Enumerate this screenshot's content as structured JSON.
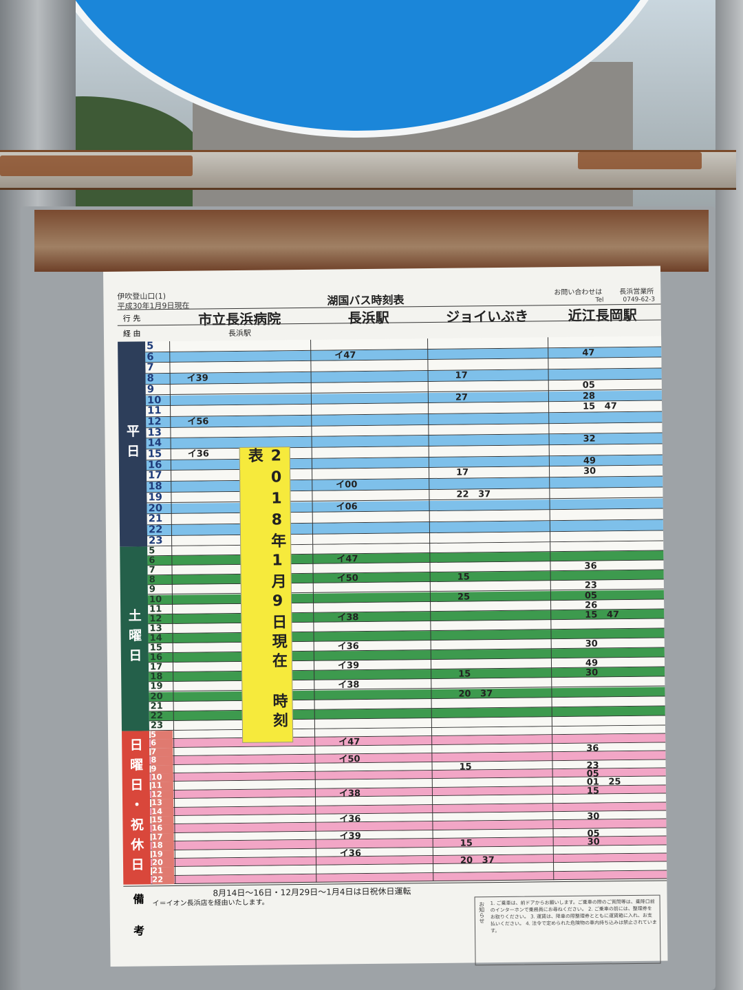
{
  "header": {
    "stop_name": "伊吹登山口(1)",
    "as_of": "平成30年1月9日現在",
    "title": "湖国バス時刻表",
    "inquiry_label": "お問い合わせは",
    "office": "長浜営業所",
    "tel_label": "Tel",
    "tel": "0749-62-3"
  },
  "columns": {
    "dest_label": "行 先",
    "via_label": "経 由",
    "destinations": [
      "市立長浜病院",
      "長浜駅",
      "ジョイいぶき",
      "近江長岡駅"
    ],
    "via": [
      "長浜駅",
      "",
      "",
      ""
    ]
  },
  "banner": "2018年1月9日現在 時刻表",
  "colors": {
    "weekday": "#7ec0ea",
    "saturday": "#3d9a4e",
    "holiday": "#f2a6c6",
    "weekday_label": "#2d3e5a",
    "saturday_label": "#24604a",
    "holiday_label": "#d9473b",
    "banner": "#f6ea3c"
  },
  "sections": [
    {
      "label": "平日",
      "hours": [
        "5",
        "6",
        "7",
        "8",
        "9",
        "10",
        "11",
        "12",
        "13",
        "14",
        "15",
        "16",
        "17",
        "18",
        "19",
        "20",
        "21",
        "22",
        "23"
      ],
      "times": [
        [
          "",
          "",
          "",
          ""
        ],
        [
          "",
          "イ47",
          "",
          "47"
        ],
        [
          "",
          "",
          "",
          ""
        ],
        [
          "イ39",
          "",
          "17",
          ""
        ],
        [
          "",
          "",
          "",
          "05"
        ],
        [
          "",
          "",
          "27",
          "28"
        ],
        [
          "",
          "",
          "",
          "15   47"
        ],
        [
          "イ56",
          "",
          "",
          ""
        ],
        [
          "",
          "",
          "",
          ""
        ],
        [
          "",
          "",
          "",
          "32"
        ],
        [
          "イ36",
          "",
          "",
          ""
        ],
        [
          "",
          "",
          "",
          "49"
        ],
        [
          "",
          "",
          "17",
          "30"
        ],
        [
          "",
          "イ00",
          "",
          ""
        ],
        [
          "",
          "",
          "22   37",
          ""
        ],
        [
          "",
          "イ06",
          "",
          ""
        ],
        [
          "",
          "",
          "",
          ""
        ],
        [
          "",
          "",
          "",
          ""
        ],
        [
          "",
          "",
          "",
          ""
        ]
      ]
    },
    {
      "label": "土曜日",
      "hours": [
        "5",
        "6",
        "7",
        "8",
        "9",
        "10",
        "11",
        "12",
        "13",
        "14",
        "15",
        "16",
        "17",
        "18",
        "19",
        "20",
        "21",
        "22",
        "23"
      ],
      "times": [
        [
          "",
          "",
          "",
          ""
        ],
        [
          "",
          "イ47",
          "",
          ""
        ],
        [
          "",
          "",
          "",
          "36"
        ],
        [
          "",
          "イ50",
          "15",
          ""
        ],
        [
          "",
          "",
          "",
          "23"
        ],
        [
          "",
          "",
          "25",
          "05"
        ],
        [
          "",
          "",
          "",
          "26"
        ],
        [
          "",
          "イ38",
          "",
          "15   47"
        ],
        [
          "",
          "",
          "",
          ""
        ],
        [
          "",
          "",
          "",
          ""
        ],
        [
          "",
          "イ36",
          "",
          "30"
        ],
        [
          "",
          "",
          "",
          ""
        ],
        [
          "",
          "イ39",
          "",
          "49"
        ],
        [
          "",
          "",
          "15",
          "30"
        ],
        [
          "",
          "イ38",
          "",
          ""
        ],
        [
          "",
          "",
          "20   37",
          ""
        ],
        [
          "",
          "",
          "",
          ""
        ],
        [
          "",
          "",
          "",
          ""
        ],
        [
          "",
          "",
          "",
          ""
        ]
      ]
    },
    {
      "label": "日曜日・祝休日",
      "hours": [
        "5",
        "6",
        "7",
        "8",
        "9",
        "10",
        "11",
        "12",
        "13",
        "14",
        "15",
        "16",
        "17",
        "18",
        "19",
        "20",
        "21",
        "22"
      ],
      "times": [
        [
          "",
          "",
          "",
          ""
        ],
        [
          "",
          "イ47",
          "",
          ""
        ],
        [
          "",
          "",
          "",
          "36"
        ],
        [
          "",
          "イ50",
          "",
          ""
        ],
        [
          "",
          "",
          "15",
          "23"
        ],
        [
          "",
          "",
          "",
          "05"
        ],
        [
          "",
          "",
          "",
          "01   25"
        ],
        [
          "",
          "イ38",
          "",
          "15"
        ],
        [
          "",
          "",
          "",
          ""
        ],
        [
          "",
          "",
          "",
          ""
        ],
        [
          "",
          "イ36",
          "",
          "30"
        ],
        [
          "",
          "",
          "",
          ""
        ],
        [
          "",
          "イ39",
          "",
          "05"
        ],
        [
          "",
          "",
          "15",
          "30"
        ],
        [
          "",
          "イ36",
          "",
          ""
        ],
        [
          "",
          "",
          "20   37",
          ""
        ],
        [
          "",
          "",
          "",
          ""
        ],
        [
          "",
          "",
          "",
          ""
        ]
      ]
    }
  ],
  "remarks": {
    "label": "備考",
    "holiday_note": "8月14日～16日・12月29日～1月4日は日祝休日運転",
    "i_note": "イ＝イオン長浜店を経由いたします。",
    "notice_label": "お知らせ",
    "notice_text": "1. ご乗車は、前ドアからお願いします。ご乗車の際のご質問等は、乗降口前のインターホンで乗務員にお尋ねください。 2. ご乗車の前には、整理券をお取りください。 3. 運賃は、降車の際整理券とともに運賃箱に入れ、お支払いください。 4. 法令で定められた危険物の車内持ち込みは禁止されています。"
  }
}
